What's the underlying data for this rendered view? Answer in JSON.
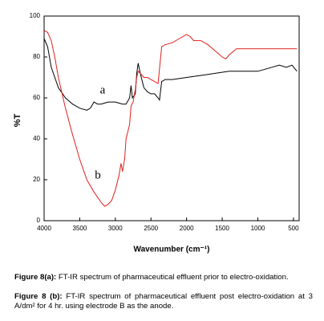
{
  "chart_data": {
    "type": "line",
    "x_label": "Wavenumber (cm⁻¹)",
    "y_label": "%T",
    "xlim": [
      4000,
      420
    ],
    "ylim": [
      0,
      100
    ],
    "xticks": [
      4000,
      3500,
      3000,
      2500,
      2000,
      1500,
      1000,
      500
    ],
    "yticks": [
      0,
      20,
      40,
      60,
      80,
      100
    ],
    "grid": false,
    "series": [
      {
        "name": "a",
        "color": "#000000",
        "x": [
          4000,
          3950,
          3900,
          3800,
          3700,
          3600,
          3500,
          3400,
          3350,
          3300,
          3250,
          3200,
          3100,
          3000,
          2900,
          2850,
          2800,
          2780,
          2760,
          2720,
          2700,
          2680,
          2650,
          2600,
          2550,
          2500,
          2450,
          2400,
          2380,
          2350,
          2300,
          2200,
          2000,
          1800,
          1600,
          1400,
          1200,
          1000,
          900,
          800,
          700,
          600,
          520,
          450
        ],
        "values": [
          89,
          85,
          75,
          65,
          60,
          57,
          55,
          54,
          55,
          58,
          57,
          57,
          58,
          58,
          57,
          57,
          60,
          66,
          60,
          62,
          72,
          77,
          72,
          65,
          63,
          62,
          62,
          60,
          59,
          68,
          69,
          69,
          70,
          71,
          72,
          73,
          73,
          73,
          74,
          75,
          76,
          75,
          76,
          73
        ]
      },
      {
        "name": "b",
        "color": "#e0201c",
        "x": [
          4000,
          3950,
          3900,
          3850,
          3800,
          3700,
          3600,
          3500,
          3400,
          3300,
          3200,
          3150,
          3100,
          3050,
          3000,
          2950,
          2920,
          2900,
          2870,
          2850,
          2800,
          2780,
          2750,
          2720,
          2700,
          2680,
          2650,
          2600,
          2550,
          2500,
          2450,
          2400,
          2350,
          2300,
          2200,
          2100,
          2000,
          1950,
          1900,
          1800,
          1700,
          1600,
          1500,
          1450,
          1400,
          1300,
          1200,
          1000,
          800,
          600,
          450
        ],
        "values": [
          93,
          92,
          88,
          80,
          70,
          55,
          42,
          30,
          20,
          14,
          9,
          7,
          8,
          10,
          15,
          22,
          28,
          24,
          30,
          40,
          47,
          56,
          58,
          64,
          70,
          73,
          72,
          70,
          70,
          69,
          68,
          67,
          85,
          86,
          87,
          89,
          91,
          90,
          88,
          88,
          86,
          83,
          80,
          79,
          81,
          84,
          84,
          84,
          84,
          84,
          84
        ]
      }
    ]
  },
  "caption": [
    {
      "label": "Figure 8(a):",
      "text": "FT-IR spectrum of pharmaceutical effluent prior to electro-oxidation."
    },
    {
      "label": "Figure 8 (b):",
      "text": "FT-IR spectrum of pharmaceutical effluent post electro-oxidation at 3 A/dm² for 4 hr.  using electrode B as the anode."
    }
  ]
}
